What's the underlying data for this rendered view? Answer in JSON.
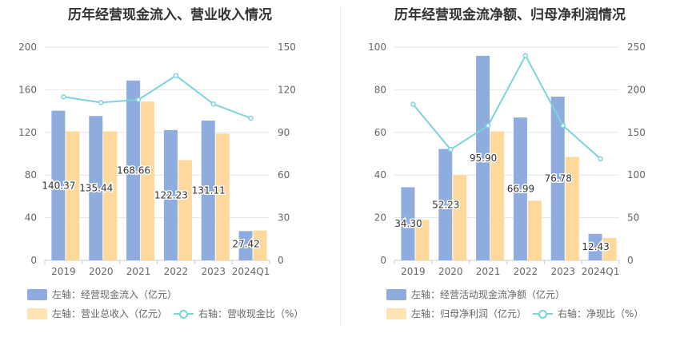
{
  "colors": {
    "bar_primary": "#8eadde",
    "bar_secondary": "#ffd99b",
    "line": "#7dd3dc",
    "grid": "#e6e6e6",
    "axis_text": "#666666"
  },
  "chart_data": [
    {
      "type": "bar",
      "title": "历年经营现金流入、营业收入情况",
      "categories": [
        "2019",
        "2020",
        "2021",
        "2022",
        "2023",
        "2024Q1"
      ],
      "ylim_left": [
        0,
        200
      ],
      "yticks_left": [
        "0",
        "40",
        "80",
        "120",
        "160",
        "200"
      ],
      "ylim_right": [
        0,
        150
      ],
      "yticks_right": [
        "0",
        "30",
        "60",
        "90",
        "120",
        "150"
      ],
      "grid": true,
      "legend_position": "bottom",
      "series": [
        {
          "name": "左轴：经营现金流入（亿元）",
          "axis": "left",
          "kind": "bar",
          "values": [
            140.37,
            135.44,
            168.66,
            122.23,
            131.11,
            27.42
          ],
          "labels": [
            "140.37",
            "135.44",
            "168.66",
            "122.23",
            "131.11",
            "27.42"
          ]
        },
        {
          "name": "左轴：营业总收入（亿元）",
          "axis": "left",
          "kind": "bar",
          "values": [
            121,
            121,
            149,
            94,
            119,
            28
          ]
        },
        {
          "name": "右轴：营收现金比（%）",
          "axis": "right",
          "kind": "line",
          "values": [
            115,
            111,
            113,
            130,
            110,
            100
          ]
        }
      ]
    },
    {
      "type": "bar",
      "title": "历年经营现金流净额、归母净利润情况",
      "categories": [
        "2019",
        "2020",
        "2021",
        "2022",
        "2023",
        "2024Q1"
      ],
      "ylim_left": [
        0,
        100
      ],
      "yticks_left": [
        "0",
        "20",
        "40",
        "60",
        "80",
        "100"
      ],
      "ylim_right": [
        0,
        250
      ],
      "yticks_right": [
        "0",
        "50",
        "100",
        "150",
        "200",
        "250"
      ],
      "grid": true,
      "legend_position": "bottom",
      "series": [
        {
          "name": "左轴：经营活动现金流净额（亿元）",
          "axis": "left",
          "kind": "bar",
          "values": [
            34.3,
            52.23,
            95.9,
            66.99,
            76.78,
            12.43
          ],
          "labels": [
            "34.30",
            "52.23",
            "95.90",
            "66.99",
            "76.78",
            "12.43"
          ]
        },
        {
          "name": "左轴：归母净利润（亿元）",
          "axis": "left",
          "kind": "bar",
          "values": [
            19,
            40,
            60.5,
            28,
            48.5,
            10.5
          ]
        },
        {
          "name": "右轴：净现比（%）",
          "axis": "right",
          "kind": "line",
          "values": [
            183,
            130,
            158,
            240,
            158,
            119
          ]
        }
      ]
    }
  ]
}
